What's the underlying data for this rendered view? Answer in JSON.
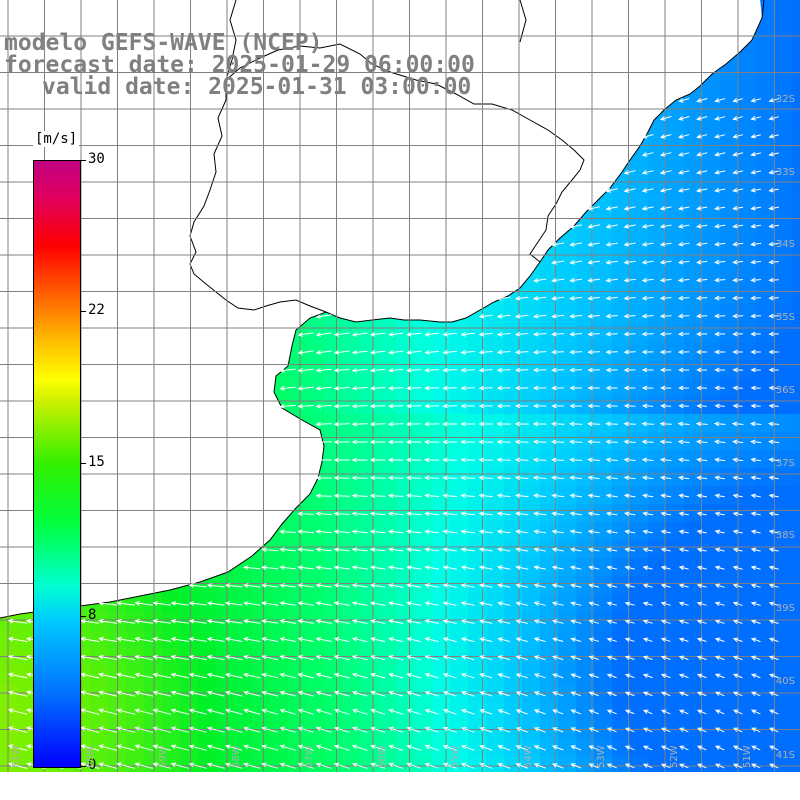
{
  "title": {
    "line1": "modelo GEFS-WAVE (NCEP)",
    "line2": "forecast date: 2025-01-29 06:00:00",
    "line3": "valid date: 2025-01-31 03:00:00"
  },
  "colorbar": {
    "units": "[m/s]",
    "ticks": [
      "30",
      "22",
      "15",
      "8",
      "0"
    ],
    "tick_values": [
      30,
      22,
      15,
      8,
      0
    ],
    "colors": [
      "#0000ff",
      "#00c8ff",
      "#00ff40",
      "#30f000",
      "#ffff00",
      "#ff7800",
      "#ff0000",
      "#c00080"
    ]
  },
  "map": {
    "lat_labels": [
      "32S",
      "33S",
      "34S",
      "35S",
      "36S",
      "37S",
      "38S",
      "39S",
      "40S",
      "41S"
    ],
    "lon_labels": [
      "61W",
      "60W",
      "59W",
      "58W",
      "57W",
      "56W",
      "55W",
      "54W",
      "53W",
      "52W",
      "51W"
    ],
    "colors": {
      "land": "#ffffff",
      "grid": "#808080",
      "coast": "#000000",
      "arrow": "#ffffff"
    }
  }
}
